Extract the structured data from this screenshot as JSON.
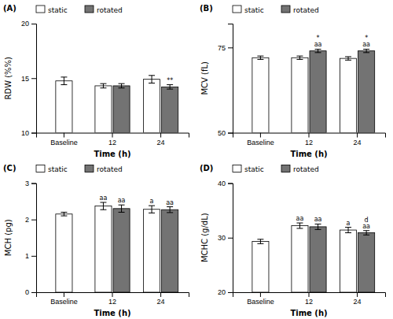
{
  "chart_data": [
    {
      "type": "bar",
      "title": "(A)",
      "x_label": "Time (h)",
      "y_label": "RDW (%%)",
      "categories": [
        "Baseline",
        "12",
        "24"
      ],
      "series": [
        {
          "name": "static",
          "color": "#ffffff",
          "values": [
            14.75,
            14.3,
            14.9
          ],
          "errors": [
            0.35,
            0.2,
            0.35
          ],
          "annotations": [
            null,
            null,
            null
          ]
        },
        {
          "name": "rotated",
          "color": "#737373",
          "values": [
            null,
            14.3,
            14.2
          ],
          "errors": [
            null,
            0.2,
            0.2
          ],
          "annotations": [
            null,
            null,
            "**"
          ]
        }
      ],
      "ylim": [
        10,
        20
      ],
      "yticks": [
        10,
        15,
        20
      ],
      "grid": false,
      "legend": "upper left"
    },
    {
      "type": "bar",
      "title": "(B)",
      "x_label": "Time (h)",
      "y_label": "MCV (fL)",
      "categories": [
        "Baseline",
        "12",
        "24"
      ],
      "series": [
        {
          "name": "static",
          "color": "#ffffff",
          "values": [
            72.0,
            72.0,
            71.8
          ],
          "errors": [
            0.5,
            0.5,
            0.5
          ],
          "annotations": [
            null,
            null,
            null
          ]
        },
        {
          "name": "rotated",
          "color": "#737373",
          "values": [
            null,
            74.0,
            74.0
          ],
          "errors": [
            null,
            0.5,
            0.5
          ],
          "annotations": [
            null,
            "*\naa",
            "*\naa"
          ]
        }
      ],
      "ylim": [
        50,
        82
      ],
      "yticks": [
        50,
        75
      ],
      "grid": false,
      "legend": "upper left"
    },
    {
      "type": "bar",
      "title": "(C)",
      "x_label": "Time (h)",
      "y_label": "MCH (pg)",
      "categories": [
        "Baseline",
        "12",
        "24"
      ],
      "series": [
        {
          "name": "static",
          "color": "#ffffff",
          "values": [
            2.15,
            2.37,
            2.28
          ],
          "errors": [
            0.05,
            0.1,
            0.1
          ],
          "annotations": [
            null,
            "aa",
            "a"
          ]
        },
        {
          "name": "rotated",
          "color": "#737373",
          "values": [
            null,
            2.3,
            2.27
          ],
          "errors": [
            null,
            0.1,
            0.08
          ],
          "annotations": [
            null,
            "aa",
            "aa"
          ]
        }
      ],
      "ylim": [
        0,
        3
      ],
      "yticks": [
        0,
        1,
        2,
        3
      ],
      "grid": false,
      "legend": "upper left"
    },
    {
      "type": "bar",
      "title": "(D)",
      "x_label": "Time (h)",
      "y_label": "MCHC (g/dL)",
      "categories": [
        "Baseline",
        "12",
        "24"
      ],
      "series": [
        {
          "name": "static",
          "color": "#ffffff",
          "values": [
            29.3,
            32.2,
            31.4
          ],
          "errors": [
            0.4,
            0.5,
            0.5
          ],
          "annotations": [
            null,
            "aa",
            "a"
          ]
        },
        {
          "name": "rotated",
          "color": "#737373",
          "values": [
            null,
            32.0,
            30.9
          ],
          "errors": [
            null,
            0.5,
            0.4
          ],
          "annotations": [
            null,
            "aa",
            "d\naa"
          ]
        }
      ],
      "ylim": [
        20,
        40
      ],
      "yticks": [
        20,
        30,
        40
      ],
      "grid": false,
      "legend": "upper left"
    }
  ]
}
